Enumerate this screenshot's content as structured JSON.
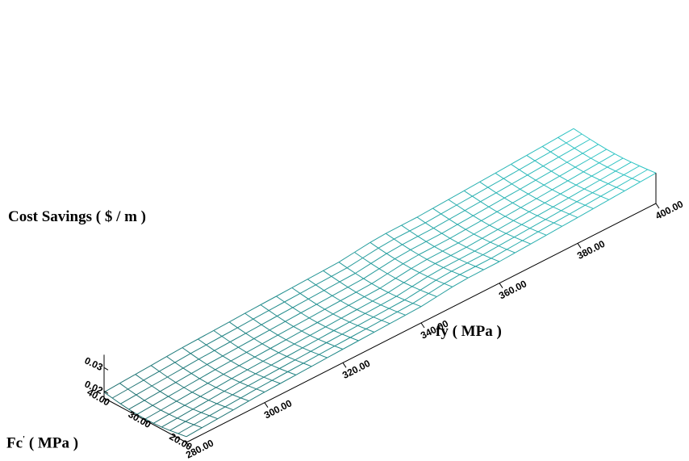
{
  "chart_data": {
    "type": "surface",
    "zlabel": "Cost Savings ( $ / m )",
    "ylabel": "fy ( MPa )",
    "xlabel": {
      "main": "Fc",
      "sup": "'",
      "unit": "( MPa )"
    },
    "fy_ticks": [
      "280.00",
      "300.00",
      "320.00",
      "340.00",
      "360.00",
      "380.00",
      "400.00"
    ],
    "fc_ticks": [
      "20.00",
      "30.00",
      "40.00"
    ],
    "z_ticks": [
      "0.02",
      "0.03"
    ],
    "fy_range": [
      280,
      400
    ],
    "fc_range": [
      20,
      40
    ],
    "z_range": [
      0.017,
      0.035
    ],
    "grid": {
      "fy_lines": 30,
      "fc_lines": 10
    },
    "surface_color": "#2ec4c4",
    "surface_color_dark": "#1e6f6f",
    "z_profile_fy": [
      280,
      300,
      320,
      340,
      350,
      360,
      380,
      400
    ],
    "z_profile_val": [
      0.0195,
      0.0215,
      0.0228,
      0.024,
      0.026,
      0.0262,
      0.028,
      0.03
    ],
    "fc_dip": 0.002
  }
}
